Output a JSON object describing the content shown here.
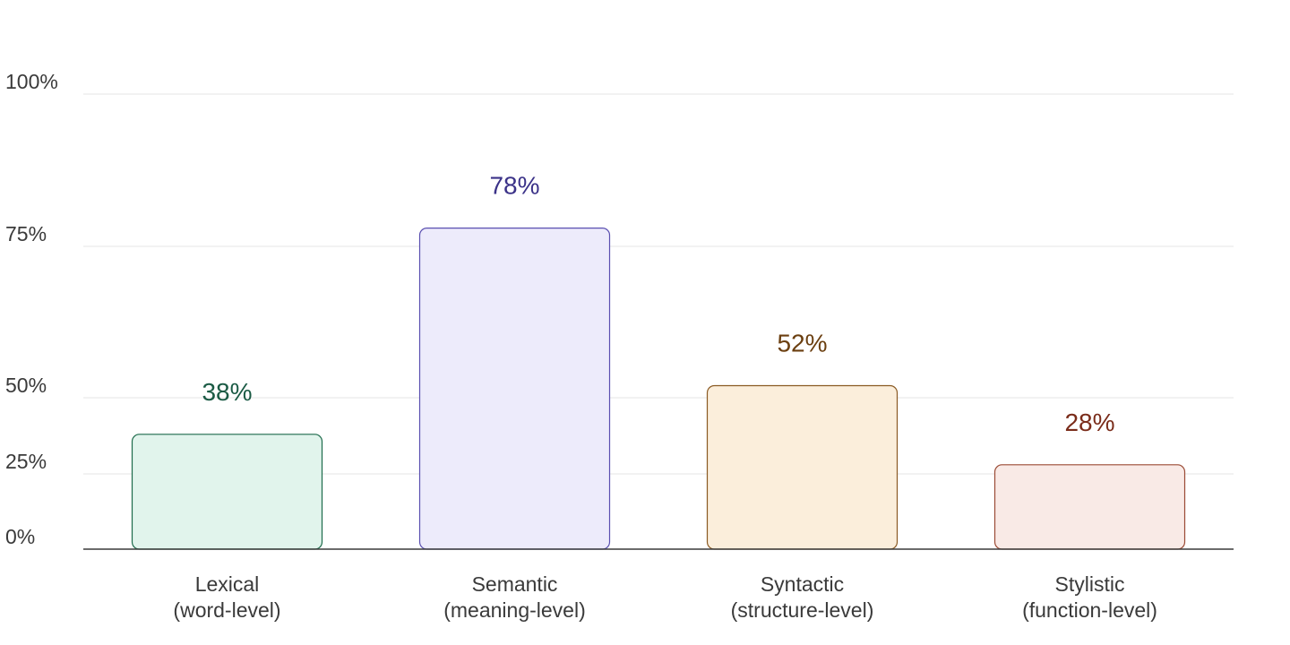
{
  "chart_data": {
    "type": "bar",
    "title": "",
    "xlabel": "",
    "ylabel": "",
    "y_ticks": [
      {
        "value": 0,
        "label": "0%"
      },
      {
        "value": 25,
        "label": "25%"
      },
      {
        "value": 50,
        "label": "50%"
      },
      {
        "value": 75,
        "label": "75%"
      },
      {
        "value": 100,
        "label": "100%"
      }
    ],
    "grid": true,
    "categories": [
      {
        "line1": "Lexical",
        "line2": "(word-level)"
      },
      {
        "line1": "Semantic",
        "line2": "(meaning-level)"
      },
      {
        "line1": "Syntactic",
        "line2": "(structure-level)"
      },
      {
        "line1": "Stylistic",
        "line2": "(function-level)"
      }
    ],
    "values": [
      38,
      78,
      52,
      28
    ],
    "value_labels": [
      "38%",
      "78%",
      "52%",
      "28%"
    ],
    "colors": [
      {
        "fill": "#e1f4ec",
        "stroke": "#1d6b4b",
        "text": "#1a5a44"
      },
      {
        "fill": "#edebfb",
        "stroke": "#5a4fb0",
        "text": "#3b3288"
      },
      {
        "fill": "#fbeedb",
        "stroke": "#8a5a23",
        "text": "#6b3f10"
      },
      {
        "fill": "#f9eae6",
        "stroke": "#9a4a34",
        "text": "#7a2c1a"
      }
    ]
  }
}
